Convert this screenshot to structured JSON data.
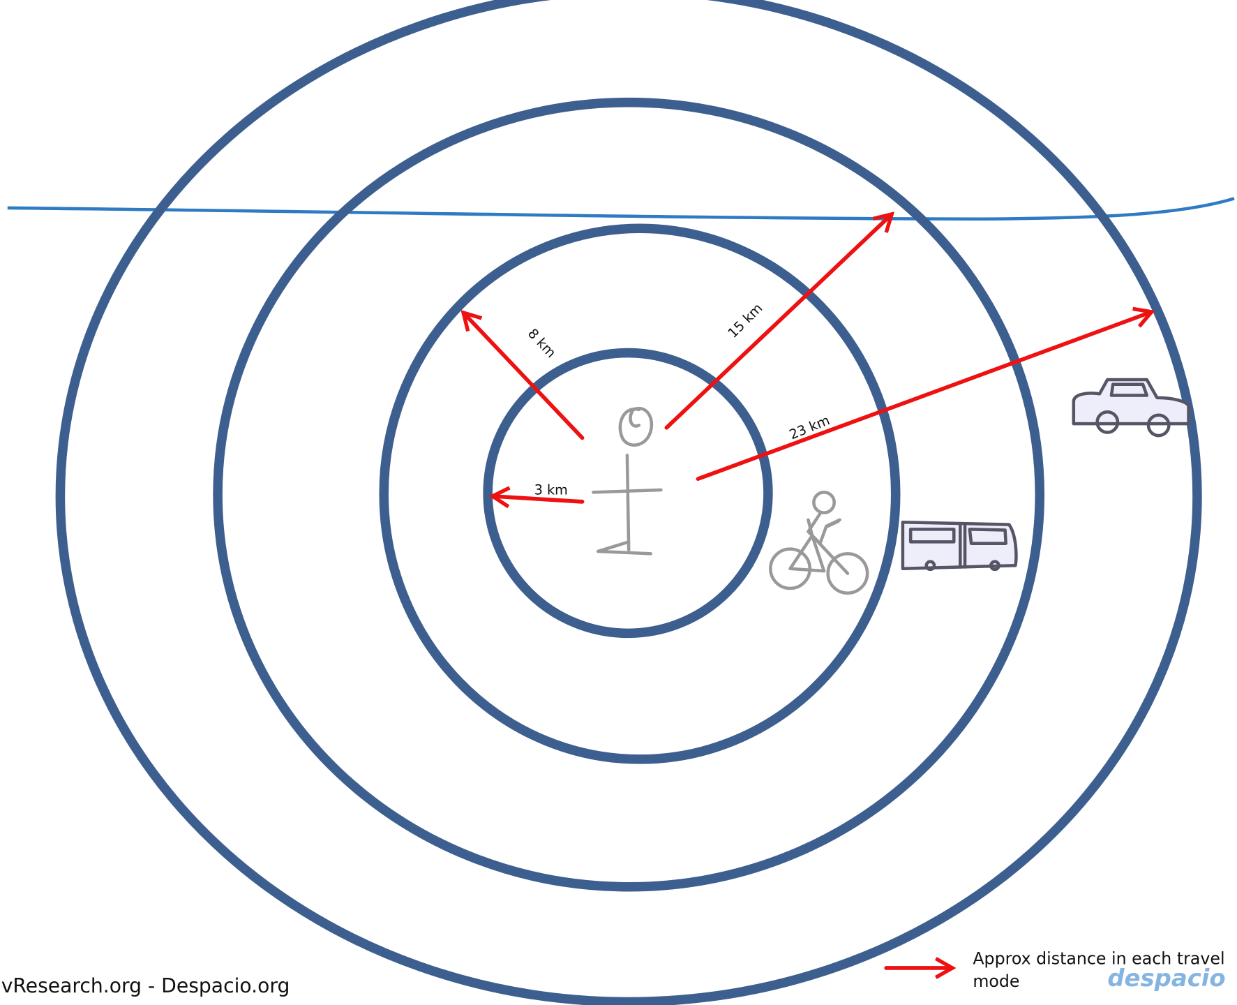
{
  "labels": [
    "3 km",
    "8 km",
    "15 km",
    "23 km"
  ],
  "legend": {
    "line1": "Approx distance in each travel",
    "line2": "mode"
  },
  "logo": "despacio",
  "footer": "vResearch.org  -  Despacio.org"
}
